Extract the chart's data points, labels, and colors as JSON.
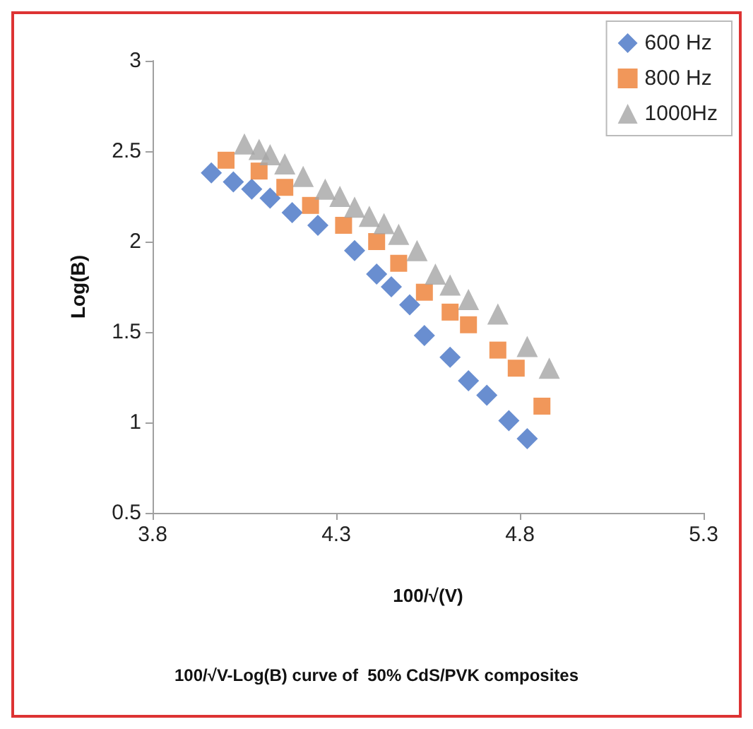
{
  "chart_data": {
    "type": "scatter",
    "xlabel": "100/√(V)",
    "ylabel": "Log(B)",
    "annotations": [
      "100/√V-Log(B) curve of  50% CdS/PVK composites"
    ],
    "xlim": [
      3.8,
      5.3
    ],
    "xticks": [
      3.8,
      4.3,
      4.8,
      5.3
    ],
    "ylim": [
      0.5,
      3
    ],
    "yticks": [
      0.5,
      1,
      1.5,
      2,
      2.5,
      3
    ],
    "grid": false,
    "legend": "top right",
    "series": [
      {
        "name": "600 Hz",
        "color": "#4472c4",
        "marker": "diamond",
        "x": [
          3.96,
          4.02,
          4.07,
          4.12,
          4.18,
          4.25,
          4.35,
          4.41,
          4.45,
          4.5,
          4.54,
          4.61,
          4.66,
          4.71,
          4.77,
          4.82
        ],
        "values": [
          2.38,
          2.33,
          2.29,
          2.24,
          2.16,
          2.09,
          1.95,
          1.82,
          1.75,
          1.65,
          1.48,
          1.36,
          1.23,
          1.15,
          1.01,
          0.91
        ]
      },
      {
        "name": "800 Hz",
        "color": "#ed7d31",
        "marker": "square",
        "x": [
          4.0,
          4.09,
          4.16,
          4.23,
          4.32,
          4.41,
          4.47,
          4.54,
          4.61,
          4.66,
          4.74,
          4.79,
          4.86
        ],
        "values": [
          2.45,
          2.39,
          2.3,
          2.2,
          2.09,
          2.0,
          1.88,
          1.72,
          1.61,
          1.54,
          1.4,
          1.3,
          1.09
        ]
      },
      {
        "name": "1000Hz",
        "color": "#a5a5a5",
        "marker": "triangle",
        "x": [
          4.05,
          4.09,
          4.12,
          4.16,
          4.21,
          4.27,
          4.31,
          4.35,
          4.39,
          4.43,
          4.47,
          4.52,
          4.57,
          4.61,
          4.66,
          4.74,
          4.82,
          4.88
        ],
        "values": [
          2.54,
          2.51,
          2.48,
          2.43,
          2.36,
          2.29,
          2.25,
          2.19,
          2.14,
          2.1,
          2.04,
          1.95,
          1.82,
          1.76,
          1.68,
          1.6,
          1.42,
          1.3
        ]
      }
    ]
  }
}
